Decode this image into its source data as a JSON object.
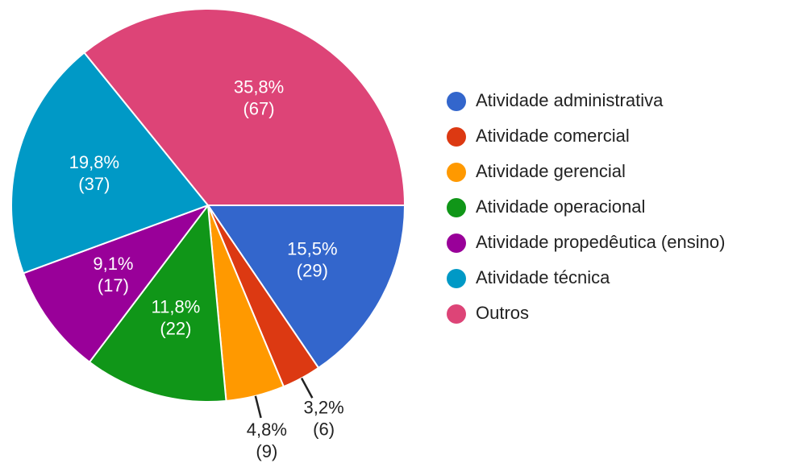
{
  "chart_data": {
    "type": "pie",
    "categories": [
      "Atividade administrativa",
      "Atividade comercial",
      "Atividade gerencial",
      "Atividade operacional",
      "Atividade propedêutica (ensino)",
      "Atividade técnica",
      "Outros"
    ],
    "values": [
      29,
      6,
      9,
      22,
      17,
      37,
      67
    ],
    "value_labels": [
      "(29)",
      "(6)",
      "(9)",
      "(22)",
      "(17)",
      "(37)",
      "(67)"
    ],
    "percent_labels": [
      "15,5%",
      "3,2%",
      "4,8%",
      "11,8%",
      "9,1%",
      "19,8%",
      "35,8%"
    ],
    "colors": [
      "#3366cc",
      "#dc3912",
      "#ff9900",
      "#109618",
      "#990099",
      "#0099c6",
      "#dd4477"
    ],
    "legend": "right"
  }
}
